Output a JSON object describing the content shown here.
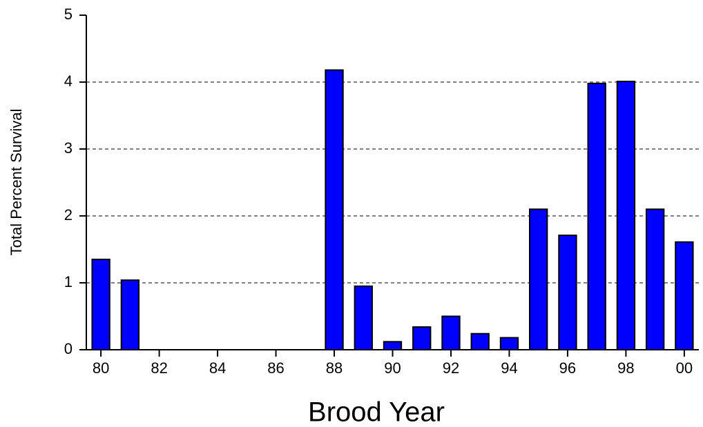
{
  "chart_data": {
    "type": "bar",
    "x_label": "Brood Year",
    "y_label": "Total Percent Survival",
    "categories": [
      "80",
      null,
      "82",
      null,
      "84",
      null,
      "86",
      null,
      "88",
      null,
      "90",
      null,
      "92",
      null,
      "94",
      null,
      "96",
      null,
      "98",
      null,
      "00"
    ],
    "values": [
      1.35,
      1.04,
      0,
      0,
      0,
      0,
      0,
      0,
      4.18,
      0.95,
      0.12,
      0.34,
      0.5,
      0.24,
      0.18,
      2.1,
      1.71,
      3.98,
      4.01,
      2.1,
      1.61
    ],
    "color": "#0000ff",
    "ylim": [
      0,
      5
    ],
    "yticks": [
      0,
      1,
      2,
      3,
      4,
      5
    ],
    "grid": true
  }
}
